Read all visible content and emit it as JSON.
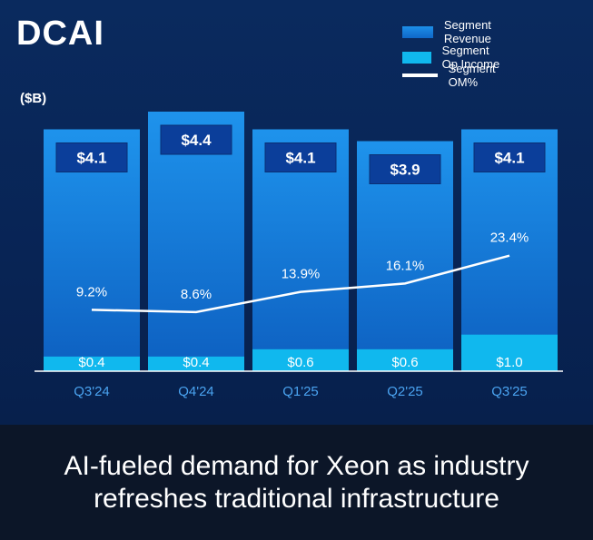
{
  "title": "DCAI",
  "unit_label": "($B)",
  "legend": {
    "revenue": "Segment Revenue",
    "op_income": "Segment Op Income",
    "om": "Segment OM%"
  },
  "caption": {
    "line1": "AI-fueled demand for Xeon as industry",
    "line2": "refreshes traditional infrastructure"
  },
  "colors": {
    "revenue_top": "#1e93ec",
    "revenue_bottom": "#0d5fc0",
    "op_income": "#10b8ee",
    "om_line": "#ffffff",
    "badge": "#0b3e9a"
  },
  "chart_data": {
    "type": "bar",
    "title": "DCAI",
    "ylabel": "($B)",
    "categories": [
      "Q3'24",
      "Q4'24",
      "Q1'25",
      "Q2'25",
      "Q3'25"
    ],
    "series": [
      {
        "name": "Segment Revenue",
        "values": [
          4.1,
          4.4,
          4.1,
          3.9,
          4.1
        ],
        "labels": [
          "$4.1",
          "$4.4",
          "$4.1",
          "$3.9",
          "$4.1"
        ]
      },
      {
        "name": "Segment Op Income",
        "values": [
          0.4,
          0.4,
          0.6,
          0.6,
          1.0
        ],
        "labels": [
          "$0.4",
          "$0.4",
          "$0.6",
          "$0.6",
          "$1.0"
        ]
      },
      {
        "name": "Segment OM%",
        "type": "line",
        "values": [
          9.2,
          8.6,
          13.9,
          16.1,
          23.4
        ],
        "labels": [
          "9.2%",
          "8.6%",
          "13.9%",
          "16.1%",
          "23.4%"
        ]
      }
    ],
    "ylim": [
      0,
      4.4
    ]
  }
}
